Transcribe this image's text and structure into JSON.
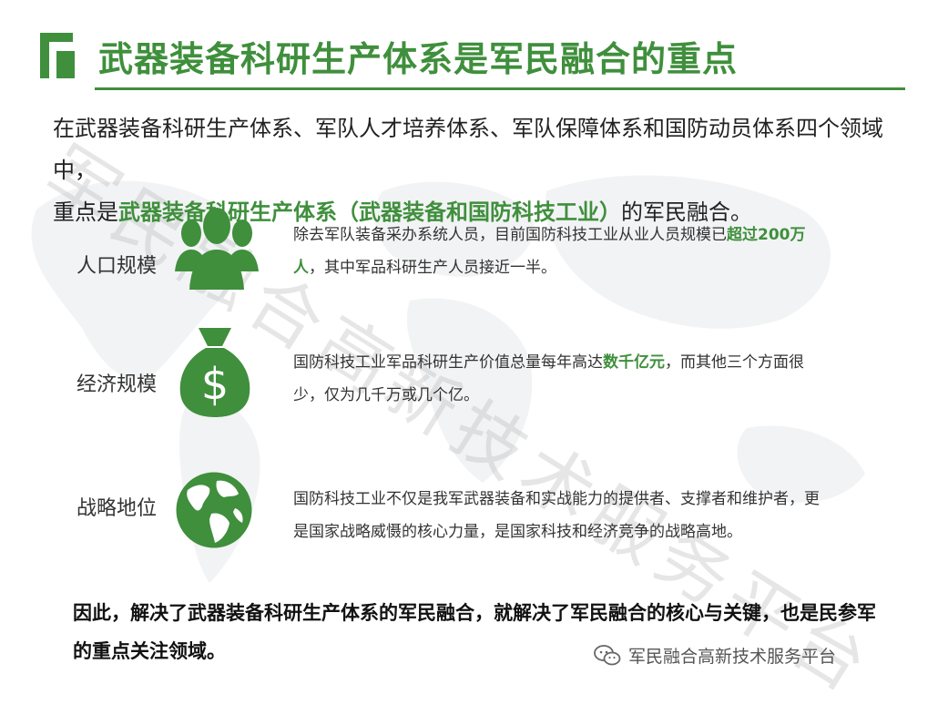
{
  "slide": {
    "title": "武器装备科研生产体系是军民融合的重点",
    "intro_line1": "在武器装备科研生产体系、军队人才培养体系、军队保障体系和国防动员体系四个领域中，",
    "intro_line2_pre": "重点是",
    "intro_line2_hl": "武器装备科研生产体系（武器装备和国防科技工业）",
    "intro_line2_post": "的军民融合。",
    "watermark": "军民融合高新技术服务平台"
  },
  "rows": [
    {
      "label": "人口规模",
      "icon": "people-group-icon",
      "text_pre": "除去军队装备采办系统人员，目前国防科技工业从业人员规模已",
      "text_hl": "超过200万人",
      "text_post": "，其中军品科研生产人员接近一半。"
    },
    {
      "label": "经济规模",
      "icon": "money-bag-icon",
      "text_pre": "国防科技工业军品科研生产价值总量每年高达",
      "text_hl": "数千亿元",
      "text_post": "，而其他三个方面很少，仅为几千万或几个亿。"
    },
    {
      "label": "战略地位",
      "icon": "globe-icon",
      "text": "国防科技工业不仅是我军武器装备和实战能力的提供者、支撑者和维护者，更是国家战略威慑的核心力量，是国家科技和经济竞争的战略高地。"
    }
  ],
  "conclusion": "因此，解决了武器装备科研生产体系的军民融合，就解决了军民融合的核心与关键，也是民参军的重点关注领域。",
  "footer": {
    "text": "军民融合高新技术服务平台",
    "icon": "wechat-icon"
  },
  "colors": {
    "accent": "#3f8f3c"
  }
}
